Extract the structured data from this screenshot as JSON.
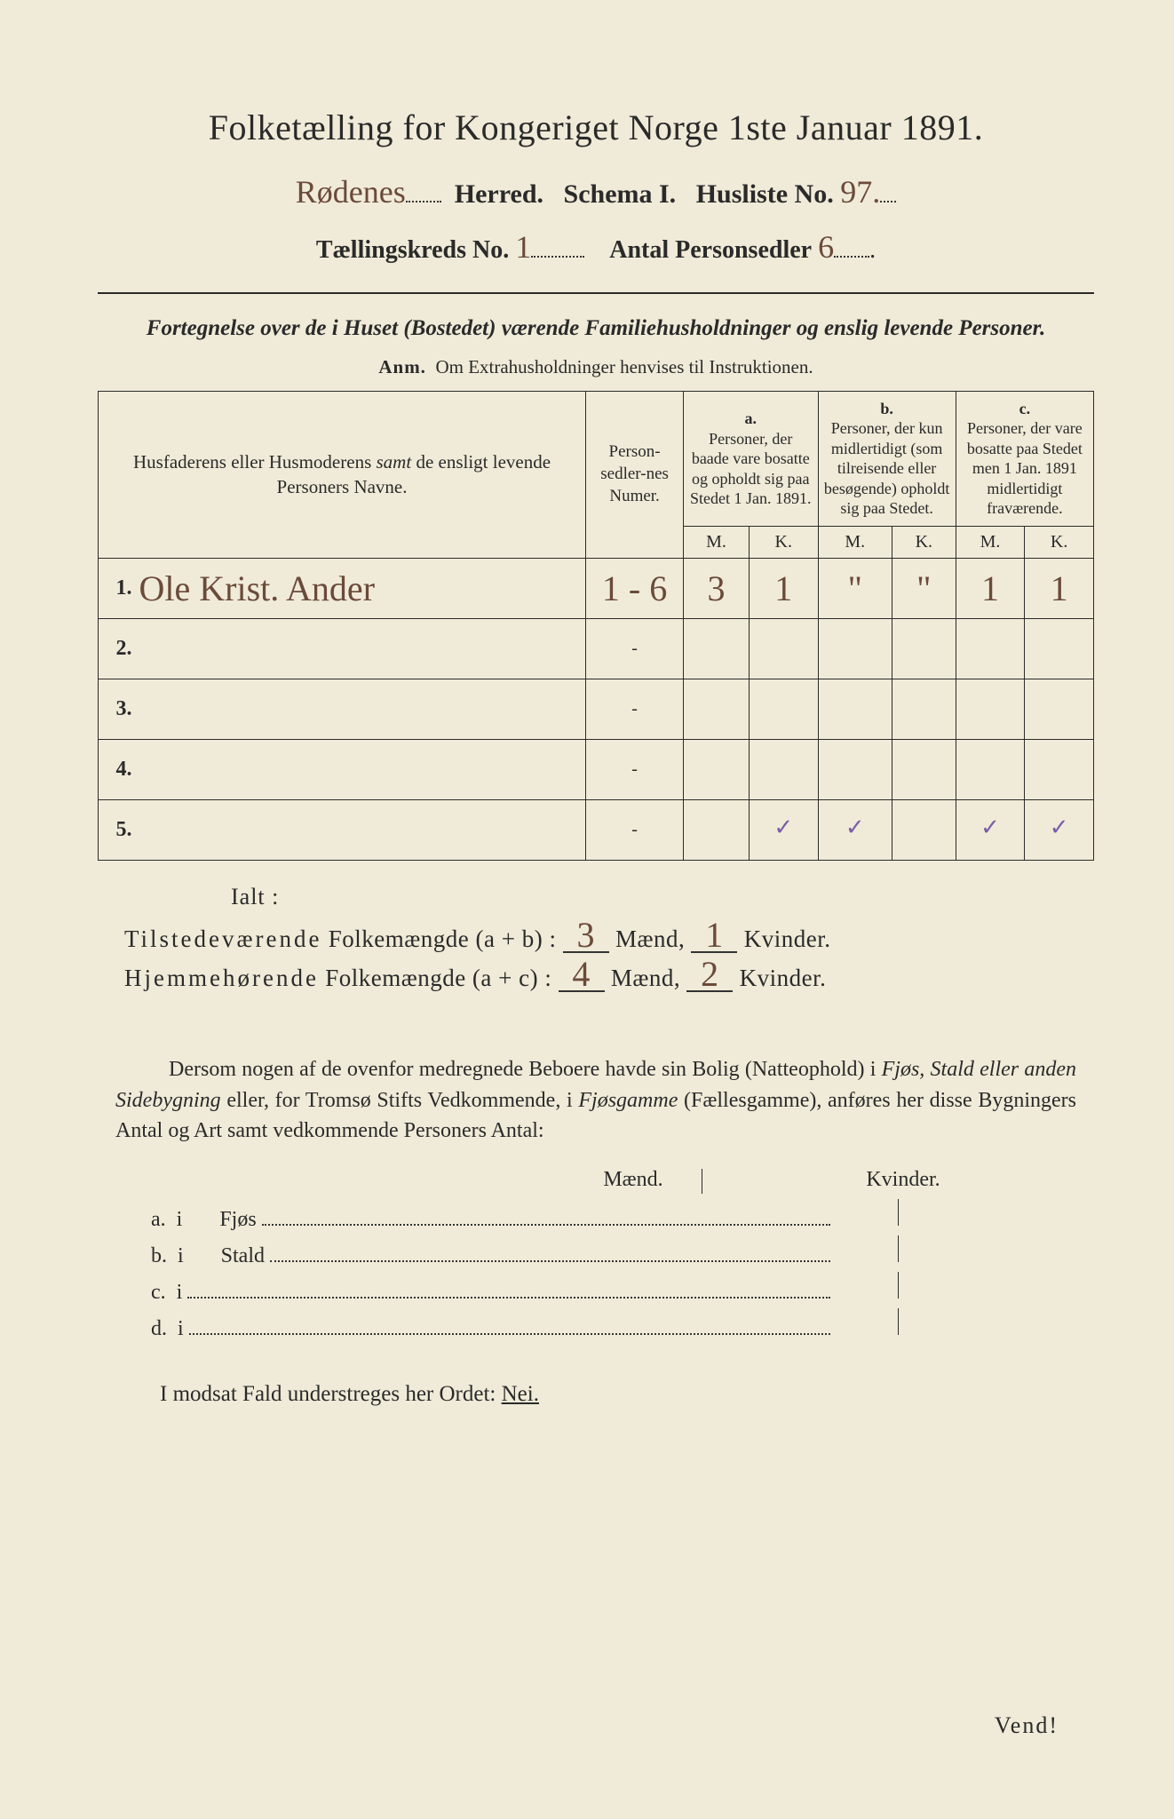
{
  "title": "Folketælling for Kongeriget Norge 1ste Januar 1891.",
  "herred_hand": "Rødenes",
  "herred_label": "Herred.",
  "schema_label": "Schema I.",
  "husliste_label": "Husliste No.",
  "husliste_no": "97.",
  "kreds_label": "Tællingskreds No.",
  "kreds_no": "1",
  "antal_label": "Antal Personsedler",
  "antal_no": "6",
  "subhead": "Fortegnelse over de i Huset (Bostedet) værende Familiehusholdninger og enslig levende Personer.",
  "anm_label": "Anm.",
  "anm_text": "Om Extrahusholdninger henvises til Instruktionen.",
  "col": {
    "name": "Husfaderens eller Husmoderens <i>samt</i> de ensligt levende Personers Navne.",
    "num": "Person-sedler-nes Numer.",
    "a_tag": "a.",
    "a": "Personer, der baade vare bosatte og opholdt sig paa Stedet 1 Jan. 1891.",
    "b_tag": "b.",
    "b": "Personer, der kun midlertidigt (som tilreisende eller besøgende) opholdt sig paa Stedet.",
    "c_tag": "c.",
    "c": "Personer, der vare bosatte paa Stedet men 1 Jan. 1891 midlertidigt fraværende.",
    "M": "M.",
    "K": "K."
  },
  "rows": [
    {
      "n": "1.",
      "name": "Ole Krist. Ander",
      "num": "1 - 6",
      "aM": "3",
      "aK": "1",
      "bM": "\"",
      "bK": "\"",
      "cM": "1",
      "cK": "1"
    },
    {
      "n": "2.",
      "name": "",
      "num": "-",
      "aM": "",
      "aK": "",
      "bM": "",
      "bK": "",
      "cM": "",
      "cK": ""
    },
    {
      "n": "3.",
      "name": "",
      "num": "-",
      "aM": "",
      "aK": "",
      "bM": "",
      "bK": "",
      "cM": "",
      "cK": ""
    },
    {
      "n": "4.",
      "name": "",
      "num": "-",
      "aM": "",
      "aK": "",
      "bM": "",
      "bK": "",
      "cM": "",
      "cK": ""
    },
    {
      "n": "5.",
      "name": "",
      "num": "-",
      "aM": "",
      "aK": "",
      "bM": "",
      "bK": "",
      "cM": "",
      "cK": ""
    }
  ],
  "ialt": "Ialt :",
  "tot1_label_a": "Tilstedeværende",
  "tot1_label_b": "Folkemængde (a + b) :",
  "tot2_label_a": "Hjemmehørende",
  "tot2_label_b": "Folkemængde (a + c) :",
  "maend": "Mænd,",
  "kvinder": "Kvinder.",
  "tot1_m": "3",
  "tot1_k": "1",
  "tot2_m": "4",
  "tot2_k": "2",
  "para": "Dersom nogen af de ovenfor medregnede Beboere havde sin Bolig (Natteophold) i <i>Fjøs, Stald eller anden Sidebygning</i> eller, for Tromsø Stifts Vedkommende, i <i>Fjøsgamme</i> (Fællesgamme), anføres her disse Bygningers Antal og Art samt vedkommende Personers Antal:",
  "mkhdr_m": "Mænd.",
  "mkhdr_k": "Kvinder.",
  "list": {
    "a": "a.  i       Fjøs",
    "b": "b.  i       Stald",
    "c": "c.  i",
    "d": "d.  i"
  },
  "nei_text": "I modsat Fald understreges her Ordet:",
  "nei": "Nei.",
  "vend": "Vend!"
}
